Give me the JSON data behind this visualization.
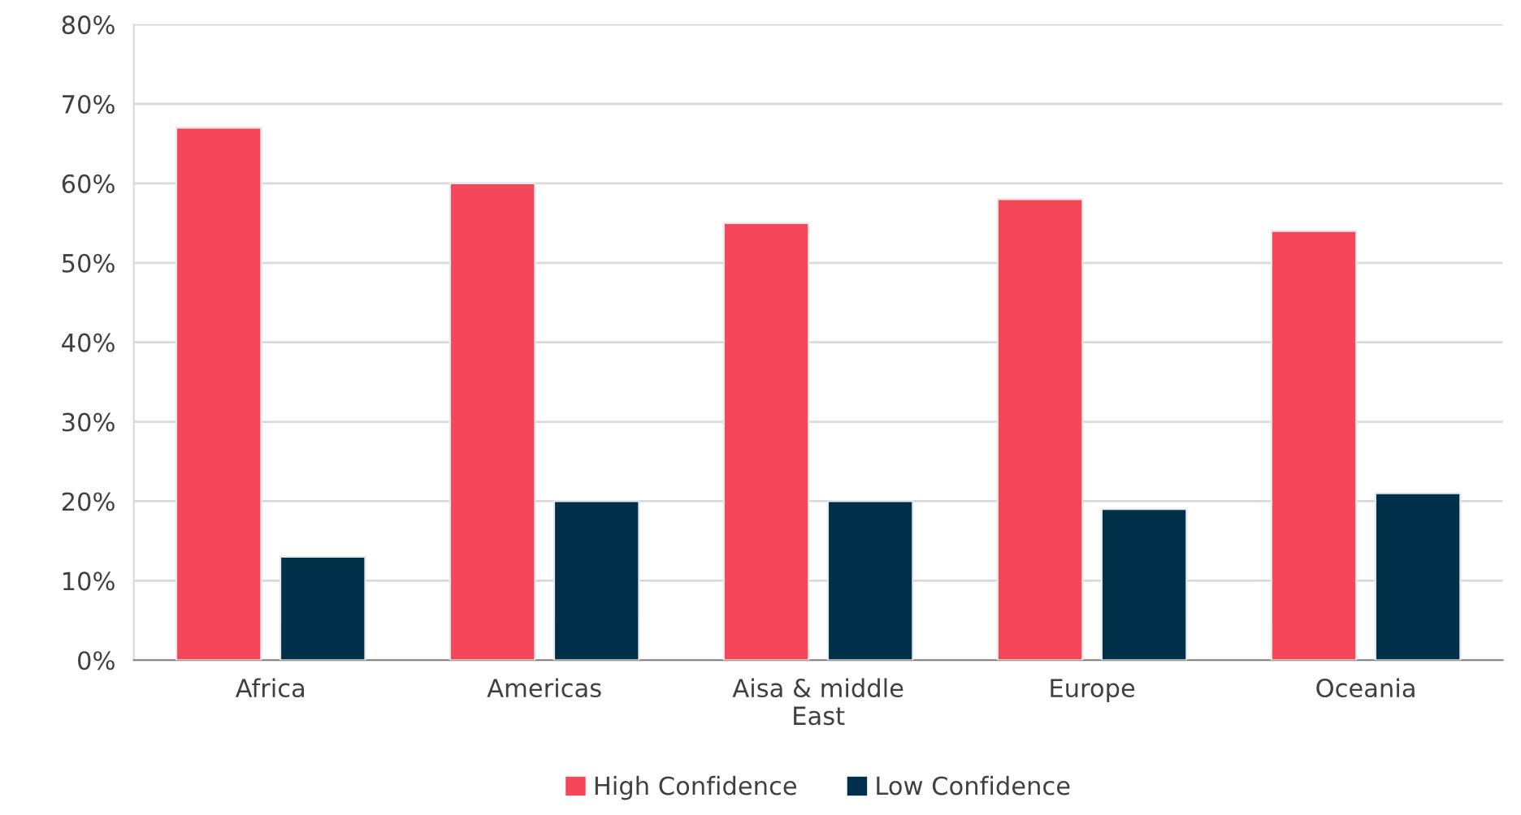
{
  "chart_data": {
    "type": "bar",
    "categories": [
      "Africa",
      "Americas",
      "Aisa & middle\nEast",
      "Europe",
      "Oceania"
    ],
    "series": [
      {
        "name": "High Confidence",
        "color": "#f4475a",
        "values": [
          67,
          60,
          55,
          58,
          54
        ]
      },
      {
        "name": "Low Confidence",
        "color": "#01304a",
        "values": [
          13,
          20,
          20,
          19,
          21
        ]
      }
    ],
    "ylim": [
      0,
      80
    ],
    "yticks": [
      {
        "value": 0,
        "label": "0%"
      },
      {
        "value": 10,
        "label": "10%"
      },
      {
        "value": 20,
        "label": "20%"
      },
      {
        "value": 30,
        "label": "30%"
      },
      {
        "value": 40,
        "label": "40%"
      },
      {
        "value": 50,
        "label": "50%"
      },
      {
        "value": 60,
        "label": "60%"
      },
      {
        "value": 70,
        "label": "70%"
      },
      {
        "value": 80,
        "label": "80%"
      }
    ],
    "grid": "y",
    "legend": "bottom"
  }
}
